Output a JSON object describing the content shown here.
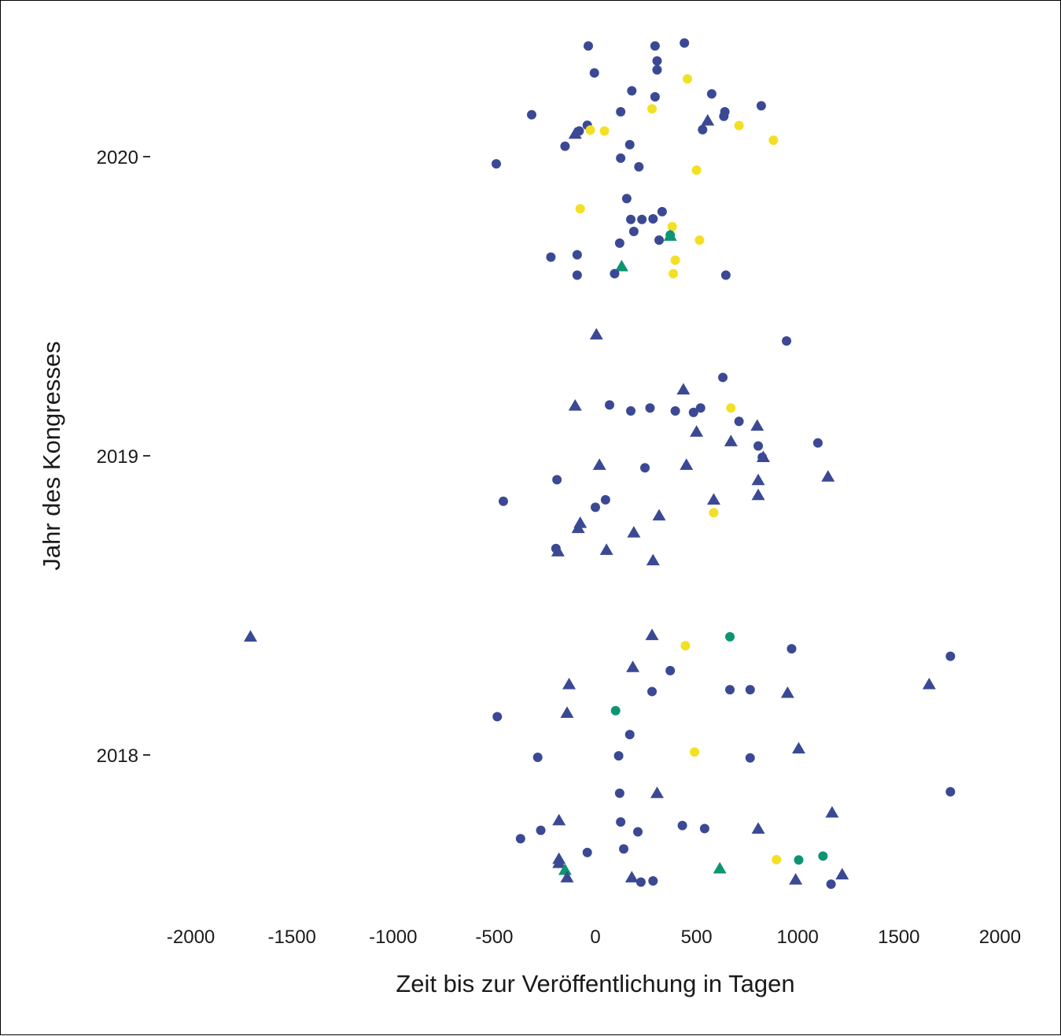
{
  "chart_data": {
    "type": "scatter",
    "xlabel": "Zeit bis zur Veröffentlichung in Tagen",
    "ylabel": "Jahr des Kongresses",
    "xlim": [
      -2000,
      2000
    ],
    "x_ticks": [
      -2000,
      -1500,
      -1000,
      -500,
      0,
      500,
      1000,
      1500,
      2000
    ],
    "x_tick_labels": [
      "-2000",
      "-1500",
      "-1000",
      "-500",
      "0",
      "500",
      "1000",
      "1500",
      "2000"
    ],
    "y_ticks": [
      2018,
      2019,
      2020
    ],
    "y_tick_labels": [
      "2018",
      "2019",
      "2020"
    ],
    "ylim": [
      2017.43,
      2020.38
    ],
    "grid": false,
    "legend": "none",
    "colors": {
      "blue": "#3b4994",
      "yellow": "#f3e024",
      "green": "#0d9473"
    },
    "points": [
      {
        "x": -35,
        "y": 2020.37,
        "shape": "circle",
        "color": "blue"
      },
      {
        "x": 295,
        "y": 2020.37,
        "shape": "circle",
        "color": "blue"
      },
      {
        "x": 440,
        "y": 2020.38,
        "shape": "circle",
        "color": "blue"
      },
      {
        "x": 305,
        "y": 2020.32,
        "shape": "circle",
        "color": "blue"
      },
      {
        "x": 305,
        "y": 2020.29,
        "shape": "circle",
        "color": "blue"
      },
      {
        "x": -5,
        "y": 2020.28,
        "shape": "circle",
        "color": "blue"
      },
      {
        "x": 455,
        "y": 2020.26,
        "shape": "circle",
        "color": "yellow"
      },
      {
        "x": 180,
        "y": 2020.22,
        "shape": "circle",
        "color": "blue"
      },
      {
        "x": 575,
        "y": 2020.21,
        "shape": "circle",
        "color": "blue"
      },
      {
        "x": 295,
        "y": 2020.2,
        "shape": "circle",
        "color": "blue"
      },
      {
        "x": 820,
        "y": 2020.17,
        "shape": "circle",
        "color": "blue"
      },
      {
        "x": 280,
        "y": 2020.16,
        "shape": "circle",
        "color": "yellow"
      },
      {
        "x": 125,
        "y": 2020.15,
        "shape": "circle",
        "color": "blue"
      },
      {
        "x": 640,
        "y": 2020.15,
        "shape": "circle",
        "color": "blue"
      },
      {
        "x": -315,
        "y": 2020.14,
        "shape": "circle",
        "color": "blue"
      },
      {
        "x": 635,
        "y": 2020.135,
        "shape": "circle",
        "color": "blue"
      },
      {
        "x": 555,
        "y": 2020.12,
        "shape": "triangle",
        "color": "blue"
      },
      {
        "x": -40,
        "y": 2020.105,
        "shape": "circle",
        "color": "blue"
      },
      {
        "x": 710,
        "y": 2020.104,
        "shape": "circle",
        "color": "yellow"
      },
      {
        "x": 530,
        "y": 2020.09,
        "shape": "circle",
        "color": "blue"
      },
      {
        "x": -80,
        "y": 2020.086,
        "shape": "circle",
        "color": "blue"
      },
      {
        "x": -25,
        "y": 2020.089,
        "shape": "circle",
        "color": "yellow"
      },
      {
        "x": 45,
        "y": 2020.086,
        "shape": "circle",
        "color": "yellow"
      },
      {
        "x": -100,
        "y": 2020.076,
        "shape": "triangle",
        "color": "blue"
      },
      {
        "x": 880,
        "y": 2020.055,
        "shape": "circle",
        "color": "yellow"
      },
      {
        "x": 170,
        "y": 2020.04,
        "shape": "circle",
        "color": "blue"
      },
      {
        "x": -150,
        "y": 2020.035,
        "shape": "circle",
        "color": "blue"
      },
      {
        "x": 125,
        "y": 2019.995,
        "shape": "circle",
        "color": "blue"
      },
      {
        "x": -490,
        "y": 2019.976,
        "shape": "circle",
        "color": "blue"
      },
      {
        "x": 215,
        "y": 2019.966,
        "shape": "circle",
        "color": "blue"
      },
      {
        "x": 500,
        "y": 2019.955,
        "shape": "circle",
        "color": "yellow"
      },
      {
        "x": 155,
        "y": 2019.86,
        "shape": "circle",
        "color": "blue"
      },
      {
        "x": -75,
        "y": 2019.826,
        "shape": "circle",
        "color": "yellow"
      },
      {
        "x": 330,
        "y": 2019.816,
        "shape": "circle",
        "color": "blue"
      },
      {
        "x": 175,
        "y": 2019.79,
        "shape": "circle",
        "color": "blue"
      },
      {
        "x": 230,
        "y": 2019.79,
        "shape": "circle",
        "color": "blue"
      },
      {
        "x": 285,
        "y": 2019.792,
        "shape": "circle",
        "color": "blue"
      },
      {
        "x": 380,
        "y": 2019.766,
        "shape": "circle",
        "color": "yellow"
      },
      {
        "x": 190,
        "y": 2019.75,
        "shape": "circle",
        "color": "blue"
      },
      {
        "x": 370,
        "y": 2019.738,
        "shape": "circle",
        "color": "green"
      },
      {
        "x": 370,
        "y": 2019.735,
        "shape": "triangle",
        "color": "green"
      },
      {
        "x": 315,
        "y": 2019.721,
        "shape": "circle",
        "color": "blue"
      },
      {
        "x": 515,
        "y": 2019.721,
        "shape": "circle",
        "color": "yellow"
      },
      {
        "x": 120,
        "y": 2019.711,
        "shape": "circle",
        "color": "blue"
      },
      {
        "x": -90,
        "y": 2019.672,
        "shape": "circle",
        "color": "blue"
      },
      {
        "x": -220,
        "y": 2019.664,
        "shape": "circle",
        "color": "blue"
      },
      {
        "x": 395,
        "y": 2019.654,
        "shape": "circle",
        "color": "yellow"
      },
      {
        "x": 130,
        "y": 2019.633,
        "shape": "triangle",
        "color": "green"
      },
      {
        "x": 95,
        "y": 2019.609,
        "shape": "circle",
        "color": "blue"
      },
      {
        "x": 385,
        "y": 2019.609,
        "shape": "circle",
        "color": "yellow"
      },
      {
        "x": -90,
        "y": 2019.604,
        "shape": "circle",
        "color": "blue"
      },
      {
        "x": 645,
        "y": 2019.604,
        "shape": "circle",
        "color": "blue"
      },
      {
        "x": 5,
        "y": 2019.405,
        "shape": "triangle",
        "color": "blue"
      },
      {
        "x": 945,
        "y": 2019.384,
        "shape": "circle",
        "color": "blue"
      },
      {
        "x": 630,
        "y": 2019.262,
        "shape": "circle",
        "color": "blue"
      },
      {
        "x": 435,
        "y": 2019.221,
        "shape": "triangle",
        "color": "blue"
      },
      {
        "x": -100,
        "y": 2019.167,
        "shape": "triangle",
        "color": "blue"
      },
      {
        "x": 70,
        "y": 2019.17,
        "shape": "circle",
        "color": "blue"
      },
      {
        "x": 270,
        "y": 2019.16,
        "shape": "circle",
        "color": "blue"
      },
      {
        "x": 520,
        "y": 2019.16,
        "shape": "circle",
        "color": "blue"
      },
      {
        "x": 175,
        "y": 2019.15,
        "shape": "circle",
        "color": "blue"
      },
      {
        "x": 395,
        "y": 2019.15,
        "shape": "circle",
        "color": "blue"
      },
      {
        "x": 485,
        "y": 2019.145,
        "shape": "circle",
        "color": "blue"
      },
      {
        "x": 670,
        "y": 2019.16,
        "shape": "circle",
        "color": "yellow"
      },
      {
        "x": 710,
        "y": 2019.115,
        "shape": "circle",
        "color": "blue"
      },
      {
        "x": 800,
        "y": 2019.1,
        "shape": "triangle",
        "color": "blue"
      },
      {
        "x": 500,
        "y": 2019.08,
        "shape": "triangle",
        "color": "blue"
      },
      {
        "x": 670,
        "y": 2019.048,
        "shape": "triangle",
        "color": "blue"
      },
      {
        "x": 1100,
        "y": 2019.043,
        "shape": "circle",
        "color": "blue"
      },
      {
        "x": 805,
        "y": 2019.033,
        "shape": "circle",
        "color": "blue"
      },
      {
        "x": 830,
        "y": 2018.995,
        "shape": "triangle",
        "color": "blue"
      },
      {
        "x": 825,
        "y": 2018.995,
        "shape": "circle",
        "color": "blue"
      },
      {
        "x": 20,
        "y": 2018.969,
        "shape": "triangle",
        "color": "blue"
      },
      {
        "x": 450,
        "y": 2018.969,
        "shape": "triangle",
        "color": "blue"
      },
      {
        "x": 245,
        "y": 2018.96,
        "shape": "circle",
        "color": "blue"
      },
      {
        "x": 1150,
        "y": 2018.93,
        "shape": "triangle",
        "color": "blue"
      },
      {
        "x": -190,
        "y": 2018.92,
        "shape": "circle",
        "color": "blue"
      },
      {
        "x": 805,
        "y": 2018.918,
        "shape": "triangle",
        "color": "blue"
      },
      {
        "x": 805,
        "y": 2018.868,
        "shape": "triangle",
        "color": "blue"
      },
      {
        "x": -455,
        "y": 2018.848,
        "shape": "circle",
        "color": "blue"
      },
      {
        "x": 50,
        "y": 2018.853,
        "shape": "circle",
        "color": "blue"
      },
      {
        "x": 585,
        "y": 2018.853,
        "shape": "triangle",
        "color": "blue"
      },
      {
        "x": 0,
        "y": 2018.828,
        "shape": "circle",
        "color": "blue"
      },
      {
        "x": 585,
        "y": 2018.81,
        "shape": "circle",
        "color": "yellow"
      },
      {
        "x": 315,
        "y": 2018.8,
        "shape": "triangle",
        "color": "blue"
      },
      {
        "x": -75,
        "y": 2018.775,
        "shape": "triangle",
        "color": "blue"
      },
      {
        "x": -85,
        "y": 2018.758,
        "shape": "triangle",
        "color": "blue"
      },
      {
        "x": 190,
        "y": 2018.743,
        "shape": "triangle",
        "color": "blue"
      },
      {
        "x": -195,
        "y": 2018.69,
        "shape": "circle",
        "color": "blue"
      },
      {
        "x": -185,
        "y": 2018.68,
        "shape": "triangle",
        "color": "blue"
      },
      {
        "x": 55,
        "y": 2018.685,
        "shape": "triangle",
        "color": "blue"
      },
      {
        "x": 285,
        "y": 2018.65,
        "shape": "triangle",
        "color": "blue"
      },
      {
        "x": -1705,
        "y": 2018.395,
        "shape": "triangle",
        "color": "blue"
      },
      {
        "x": 280,
        "y": 2018.4,
        "shape": "triangle",
        "color": "blue"
      },
      {
        "x": 665,
        "y": 2018.395,
        "shape": "circle",
        "color": "green"
      },
      {
        "x": 445,
        "y": 2018.365,
        "shape": "circle",
        "color": "yellow"
      },
      {
        "x": 970,
        "y": 2018.355,
        "shape": "circle",
        "color": "blue"
      },
      {
        "x": 1755,
        "y": 2018.33,
        "shape": "circle",
        "color": "blue"
      },
      {
        "x": 185,
        "y": 2018.293,
        "shape": "triangle",
        "color": "blue"
      },
      {
        "x": 370,
        "y": 2018.282,
        "shape": "circle",
        "color": "blue"
      },
      {
        "x": -130,
        "y": 2018.236,
        "shape": "triangle",
        "color": "blue"
      },
      {
        "x": 1650,
        "y": 2018.236,
        "shape": "triangle",
        "color": "blue"
      },
      {
        "x": 665,
        "y": 2018.218,
        "shape": "circle",
        "color": "blue"
      },
      {
        "x": 765,
        "y": 2018.218,
        "shape": "circle",
        "color": "blue"
      },
      {
        "x": 280,
        "y": 2018.212,
        "shape": "circle",
        "color": "blue"
      },
      {
        "x": 950,
        "y": 2018.207,
        "shape": "triangle",
        "color": "blue"
      },
      {
        "x": -140,
        "y": 2018.14,
        "shape": "triangle",
        "color": "blue"
      },
      {
        "x": 100,
        "y": 2018.148,
        "shape": "circle",
        "color": "green"
      },
      {
        "x": -485,
        "y": 2018.128,
        "shape": "circle",
        "color": "blue"
      },
      {
        "x": 170,
        "y": 2018.068,
        "shape": "circle",
        "color": "blue"
      },
      {
        "x": 1005,
        "y": 2018.021,
        "shape": "triangle",
        "color": "blue"
      },
      {
        "x": 490,
        "y": 2018.01,
        "shape": "circle",
        "color": "yellow"
      },
      {
        "x": 115,
        "y": 2017.997,
        "shape": "circle",
        "color": "blue"
      },
      {
        "x": -285,
        "y": 2017.992,
        "shape": "circle",
        "color": "blue"
      },
      {
        "x": 765,
        "y": 2017.99,
        "shape": "circle",
        "color": "blue"
      },
      {
        "x": 1755,
        "y": 2017.877,
        "shape": "circle",
        "color": "blue"
      },
      {
        "x": 120,
        "y": 2017.872,
        "shape": "circle",
        "color": "blue"
      },
      {
        "x": 305,
        "y": 2017.872,
        "shape": "triangle",
        "color": "blue"
      },
      {
        "x": 1170,
        "y": 2017.807,
        "shape": "triangle",
        "color": "blue"
      },
      {
        "x": -180,
        "y": 2017.781,
        "shape": "triangle",
        "color": "blue"
      },
      {
        "x": 125,
        "y": 2017.776,
        "shape": "circle",
        "color": "blue"
      },
      {
        "x": 430,
        "y": 2017.764,
        "shape": "circle",
        "color": "blue"
      },
      {
        "x": 540,
        "y": 2017.754,
        "shape": "circle",
        "color": "blue"
      },
      {
        "x": -270,
        "y": 2017.748,
        "shape": "circle",
        "color": "blue"
      },
      {
        "x": 805,
        "y": 2017.753,
        "shape": "triangle",
        "color": "blue"
      },
      {
        "x": 210,
        "y": 2017.743,
        "shape": "circle",
        "color": "blue"
      },
      {
        "x": -370,
        "y": 2017.72,
        "shape": "circle",
        "color": "blue"
      },
      {
        "x": 140,
        "y": 2017.686,
        "shape": "circle",
        "color": "blue"
      },
      {
        "x": -40,
        "y": 2017.674,
        "shape": "circle",
        "color": "blue"
      },
      {
        "x": -180,
        "y": 2017.652,
        "shape": "triangle",
        "color": "blue"
      },
      {
        "x": 1125,
        "y": 2017.662,
        "shape": "circle",
        "color": "green"
      },
      {
        "x": 895,
        "y": 2017.65,
        "shape": "circle",
        "color": "yellow"
      },
      {
        "x": 1005,
        "y": 2017.649,
        "shape": "circle",
        "color": "green"
      },
      {
        "x": -180,
        "y": 2017.638,
        "shape": "triangle",
        "color": "blue"
      },
      {
        "x": -150,
        "y": 2017.615,
        "shape": "triangle",
        "color": "green"
      },
      {
        "x": 615,
        "y": 2017.62,
        "shape": "triangle",
        "color": "green"
      },
      {
        "x": -140,
        "y": 2017.59,
        "shape": "triangle",
        "color": "blue"
      },
      {
        "x": 180,
        "y": 2017.59,
        "shape": "triangle",
        "color": "blue"
      },
      {
        "x": 1220,
        "y": 2017.6,
        "shape": "triangle",
        "color": "blue"
      },
      {
        "x": 990,
        "y": 2017.583,
        "shape": "triangle",
        "color": "blue"
      },
      {
        "x": 225,
        "y": 2017.575,
        "shape": "circle",
        "color": "blue"
      },
      {
        "x": 285,
        "y": 2017.579,
        "shape": "circle",
        "color": "blue"
      },
      {
        "x": 1165,
        "y": 2017.568,
        "shape": "circle",
        "color": "blue"
      }
    ]
  }
}
